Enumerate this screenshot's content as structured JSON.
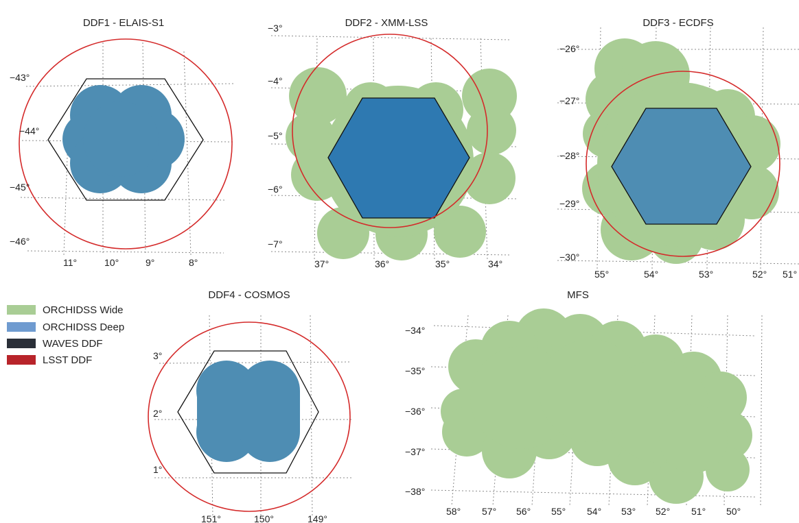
{
  "colors": {
    "wide": "#a9cd95",
    "deep": "#4e8db3",
    "deep_dark": "#2e79b1",
    "waves": "#111111",
    "lsst": "#d42a2a"
  },
  "legend": [
    {
      "label": "ORCHIDSS Wide",
      "color": "#a9cd95"
    },
    {
      "label": "ORCHIDSS Deep",
      "color": "#6f9bd0"
    },
    {
      "label": "WAVES DDF",
      "color": "#2a2f38"
    },
    {
      "label": "LSST DDF",
      "color": "#b8242a"
    }
  ],
  "panels": [
    {
      "id": "ddf1",
      "title": "DDF1 - ELAIS-S1",
      "dec_labels": [
        "−43°",
        "−44°",
        "−45°",
        "−46°"
      ],
      "ra_labels": [
        "11°",
        "10°",
        "9°",
        "8°"
      ]
    },
    {
      "id": "ddf2",
      "title": "DDF2 - XMM-LSS",
      "dec_labels": [
        "−3°",
        "−4°",
        "−5°",
        "−6°",
        "−7°"
      ],
      "ra_labels": [
        "37°",
        "36°",
        "35°",
        "34°"
      ]
    },
    {
      "id": "ddf3",
      "title": "DDF3 - ECDFS",
      "dec_labels": [
        "−26°",
        "−27°",
        "−28°",
        "−29°",
        "−30°"
      ],
      "ra_labels": [
        "55°",
        "54°",
        "53°",
        "52°",
        "51°"
      ]
    },
    {
      "id": "ddf4",
      "title": "DDF4 - COSMOS",
      "dec_labels": [
        "3°",
        "2°",
        "1°"
      ],
      "ra_labels": [
        "151°",
        "150°",
        "149°"
      ]
    },
    {
      "id": "mfs",
      "title": "MFS",
      "dec_labels": [
        "−34°",
        "−35°",
        "−36°",
        "−37°",
        "−38°"
      ],
      "ra_labels": [
        "58°",
        "57°",
        "56°",
        "55°",
        "54°",
        "53°",
        "52°",
        "51°",
        "50°"
      ]
    }
  ]
}
